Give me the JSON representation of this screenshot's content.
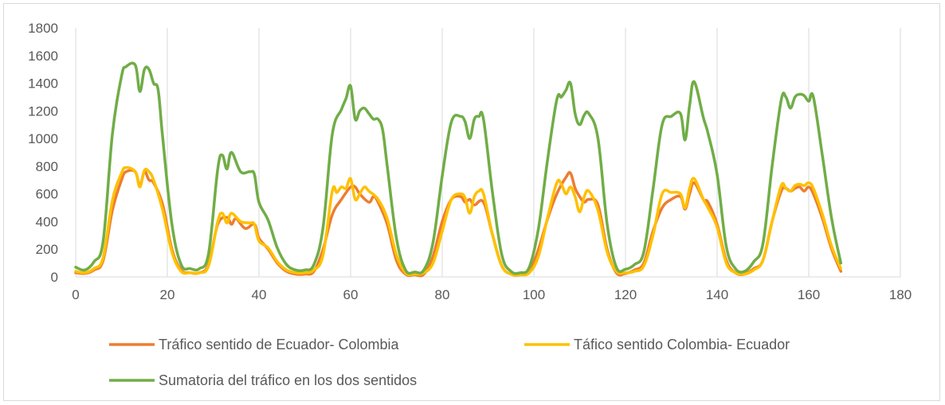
{
  "chart_data": {
    "type": "line",
    "title": "",
    "xlabel": "",
    "ylabel": "",
    "xlim": [
      0,
      180
    ],
    "ylim": [
      0,
      1800
    ],
    "x_ticks": [
      "0",
      "20",
      "40",
      "60",
      "80",
      "100",
      "120",
      "140",
      "160",
      "180"
    ],
    "y_ticks": [
      "0",
      "200",
      "400",
      "600",
      "800",
      "1000",
      "1200",
      "1400",
      "1600",
      "1800"
    ],
    "grid": "vertical",
    "legend_position": "bottom",
    "series": [
      {
        "name": "Tráfico sentido de Ecuador- Colombia",
        "color": "#ed7d31",
        "points": [
          [
            0,
            30
          ],
          [
            2,
            25
          ],
          [
            4,
            50
          ],
          [
            6,
            120
          ],
          [
            8,
            480
          ],
          [
            10,
            700
          ],
          [
            11,
            760
          ],
          [
            13,
            760
          ],
          [
            14,
            660
          ],
          [
            15,
            760
          ],
          [
            16,
            700
          ],
          [
            17,
            680
          ],
          [
            19,
            520
          ],
          [
            21,
            200
          ],
          [
            23,
            50
          ],
          [
            25,
            30
          ],
          [
            27,
            30
          ],
          [
            29,
            90
          ],
          [
            31,
            380
          ],
          [
            33,
            430
          ],
          [
            34,
            380
          ],
          [
            35,
            420
          ],
          [
            37,
            350
          ],
          [
            39,
            380
          ],
          [
            40,
            280
          ],
          [
            42,
            200
          ],
          [
            44,
            100
          ],
          [
            46,
            40
          ],
          [
            48,
            20
          ],
          [
            50,
            20
          ],
          [
            52,
            40
          ],
          [
            54,
            200
          ],
          [
            56,
            450
          ],
          [
            58,
            560
          ],
          [
            60,
            650
          ],
          [
            61,
            650
          ],
          [
            62,
            600
          ],
          [
            64,
            540
          ],
          [
            65,
            580
          ],
          [
            66,
            540
          ],
          [
            68,
            380
          ],
          [
            70,
            120
          ],
          [
            72,
            20
          ],
          [
            74,
            15
          ],
          [
            76,
            20
          ],
          [
            78,
            150
          ],
          [
            80,
            400
          ],
          [
            82,
            560
          ],
          [
            84,
            580
          ],
          [
            85,
            540
          ],
          [
            86,
            560
          ],
          [
            87,
            520
          ],
          [
            89,
            540
          ],
          [
            91,
            300
          ],
          [
            93,
            80
          ],
          [
            95,
            20
          ],
          [
            97,
            15
          ],
          [
            99,
            40
          ],
          [
            101,
            200
          ],
          [
            103,
            420
          ],
          [
            105,
            600
          ],
          [
            107,
            720
          ],
          [
            108,
            750
          ],
          [
            109,
            640
          ],
          [
            110,
            580
          ],
          [
            111,
            540
          ],
          [
            112,
            560
          ],
          [
            114,
            520
          ],
          [
            116,
            200
          ],
          [
            118,
            30
          ],
          [
            120,
            25
          ],
          [
            122,
            50
          ],
          [
            124,
            100
          ],
          [
            126,
            330
          ],
          [
            128,
            500
          ],
          [
            130,
            560
          ],
          [
            132,
            580
          ],
          [
            133,
            490
          ],
          [
            134,
            600
          ],
          [
            135,
            680
          ],
          [
            137,
            560
          ],
          [
            138,
            540
          ],
          [
            140,
            380
          ],
          [
            142,
            120
          ],
          [
            144,
            30
          ],
          [
            146,
            20
          ],
          [
            148,
            60
          ],
          [
            150,
            120
          ],
          [
            152,
            400
          ],
          [
            154,
            620
          ],
          [
            155,
            640
          ],
          [
            156,
            620
          ],
          [
            157,
            640
          ],
          [
            158,
            650
          ],
          [
            159,
            620
          ],
          [
            160,
            650
          ],
          [
            161,
            600
          ],
          [
            163,
            420
          ],
          [
            165,
            200
          ],
          [
            167,
            40
          ]
        ]
      },
      {
        "name": "Táfico sentido Colombia- Ecuador",
        "color": "#ffc000",
        "points": [
          [
            0,
            40
          ],
          [
            2,
            30
          ],
          [
            4,
            60
          ],
          [
            6,
            140
          ],
          [
            8,
            550
          ],
          [
            10,
            750
          ],
          [
            11,
            790
          ],
          [
            13,
            760
          ],
          [
            14,
            650
          ],
          [
            15,
            770
          ],
          [
            16,
            760
          ],
          [
            17,
            700
          ],
          [
            19,
            480
          ],
          [
            21,
            180
          ],
          [
            23,
            40
          ],
          [
            25,
            30
          ],
          [
            27,
            30
          ],
          [
            29,
            80
          ],
          [
            31,
            400
          ],
          [
            32,
            460
          ],
          [
            33,
            390
          ],
          [
            34,
            460
          ],
          [
            36,
            400
          ],
          [
            38,
            390
          ],
          [
            39,
            380
          ],
          [
            40,
            260
          ],
          [
            42,
            210
          ],
          [
            44,
            110
          ],
          [
            46,
            50
          ],
          [
            48,
            30
          ],
          [
            50,
            30
          ],
          [
            52,
            50
          ],
          [
            54,
            160
          ],
          [
            56,
            620
          ],
          [
            57,
            610
          ],
          [
            58,
            650
          ],
          [
            59,
            640
          ],
          [
            60,
            710
          ],
          [
            61,
            560
          ],
          [
            62,
            600
          ],
          [
            63,
            650
          ],
          [
            64,
            620
          ],
          [
            66,
            560
          ],
          [
            68,
            420
          ],
          [
            70,
            160
          ],
          [
            72,
            30
          ],
          [
            74,
            20
          ],
          [
            76,
            30
          ],
          [
            78,
            100
          ],
          [
            80,
            330
          ],
          [
            82,
            560
          ],
          [
            84,
            600
          ],
          [
            85,
            570
          ],
          [
            86,
            460
          ],
          [
            87,
            580
          ],
          [
            88,
            620
          ],
          [
            89,
            600
          ],
          [
            91,
            300
          ],
          [
            93,
            80
          ],
          [
            95,
            20
          ],
          [
            97,
            15
          ],
          [
            99,
            30
          ],
          [
            101,
            150
          ],
          [
            103,
            430
          ],
          [
            105,
            680
          ],
          [
            106,
            670
          ],
          [
            107,
            600
          ],
          [
            108,
            650
          ],
          [
            109,
            580
          ],
          [
            110,
            470
          ],
          [
            111,
            580
          ],
          [
            112,
            620
          ],
          [
            114,
            480
          ],
          [
            116,
            180
          ],
          [
            118,
            40
          ],
          [
            120,
            30
          ],
          [
            122,
            40
          ],
          [
            124,
            80
          ],
          [
            126,
            300
          ],
          [
            128,
            600
          ],
          [
            130,
            610
          ],
          [
            132,
            600
          ],
          [
            133,
            500
          ],
          [
            134,
            640
          ],
          [
            135,
            710
          ],
          [
            137,
            560
          ],
          [
            138,
            500
          ],
          [
            140,
            360
          ],
          [
            142,
            100
          ],
          [
            144,
            30
          ],
          [
            146,
            20
          ],
          [
            148,
            50
          ],
          [
            150,
            120
          ],
          [
            152,
            400
          ],
          [
            154,
            660
          ],
          [
            155,
            640
          ],
          [
            156,
            620
          ],
          [
            157,
            660
          ],
          [
            158,
            670
          ],
          [
            159,
            660
          ],
          [
            160,
            680
          ],
          [
            161,
            640
          ],
          [
            163,
            450
          ],
          [
            165,
            220
          ],
          [
            167,
            60
          ]
        ]
      },
      {
        "name": "Sumatoria del tráfico en los dos sentidos",
        "color": "#70ad47",
        "points": [
          [
            0,
            70
          ],
          [
            2,
            50
          ],
          [
            4,
            110
          ],
          [
            6,
            260
          ],
          [
            8,
            1030
          ],
          [
            10,
            1450
          ],
          [
            11,
            1520
          ],
          [
            13,
            1530
          ],
          [
            14,
            1340
          ],
          [
            15,
            1500
          ],
          [
            16,
            1500
          ],
          [
            17,
            1400
          ],
          [
            18,
            1350
          ],
          [
            19,
            1000
          ],
          [
            21,
            380
          ],
          [
            23,
            90
          ],
          [
            25,
            60
          ],
          [
            27,
            60
          ],
          [
            29,
            170
          ],
          [
            31,
            780
          ],
          [
            32,
            880
          ],
          [
            33,
            780
          ],
          [
            34,
            900
          ],
          [
            36,
            760
          ],
          [
            38,
            760
          ],
          [
            39,
            740
          ],
          [
            40,
            540
          ],
          [
            42,
            410
          ],
          [
            44,
            210
          ],
          [
            46,
            90
          ],
          [
            48,
            50
          ],
          [
            50,
            50
          ],
          [
            52,
            90
          ],
          [
            54,
            360
          ],
          [
            56,
            1030
          ],
          [
            58,
            1210
          ],
          [
            59,
            1290
          ],
          [
            60,
            1380
          ],
          [
            61,
            1140
          ],
          [
            62,
            1200
          ],
          [
            63,
            1220
          ],
          [
            64,
            1180
          ],
          [
            65,
            1140
          ],
          [
            66,
            1140
          ],
          [
            67,
            1060
          ],
          [
            68,
            800
          ],
          [
            70,
            280
          ],
          [
            72,
            50
          ],
          [
            74,
            35
          ],
          [
            76,
            50
          ],
          [
            78,
            250
          ],
          [
            80,
            730
          ],
          [
            82,
            1120
          ],
          [
            84,
            1160
          ],
          [
            85,
            1120
          ],
          [
            86,
            1000
          ],
          [
            87,
            1140
          ],
          [
            88,
            1160
          ],
          [
            89,
            1140
          ],
          [
            91,
            600
          ],
          [
            93,
            160
          ],
          [
            95,
            40
          ],
          [
            97,
            30
          ],
          [
            99,
            70
          ],
          [
            101,
            350
          ],
          [
            103,
            850
          ],
          [
            105,
            1280
          ],
          [
            106,
            1300
          ],
          [
            107,
            1350
          ],
          [
            108,
            1400
          ],
          [
            109,
            1180
          ],
          [
            110,
            1100
          ],
          [
            111,
            1170
          ],
          [
            112,
            1180
          ],
          [
            114,
            1000
          ],
          [
            116,
            380
          ],
          [
            118,
            70
          ],
          [
            120,
            55
          ],
          [
            122,
            90
          ],
          [
            124,
            180
          ],
          [
            126,
            630
          ],
          [
            128,
            1100
          ],
          [
            130,
            1160
          ],
          [
            132,
            1180
          ],
          [
            133,
            990
          ],
          [
            134,
            1240
          ],
          [
            135,
            1410
          ],
          [
            137,
            1150
          ],
          [
            138,
            1040
          ],
          [
            140,
            740
          ],
          [
            142,
            220
          ],
          [
            144,
            60
          ],
          [
            146,
            40
          ],
          [
            148,
            110
          ],
          [
            150,
            240
          ],
          [
            152,
            800
          ],
          [
            154,
            1280
          ],
          [
            155,
            1300
          ],
          [
            156,
            1220
          ],
          [
            157,
            1300
          ],
          [
            158,
            1320
          ],
          [
            159,
            1310
          ],
          [
            160,
            1270
          ],
          [
            161,
            1300
          ],
          [
            163,
            870
          ],
          [
            165,
            420
          ],
          [
            167,
            100
          ]
        ]
      }
    ]
  }
}
